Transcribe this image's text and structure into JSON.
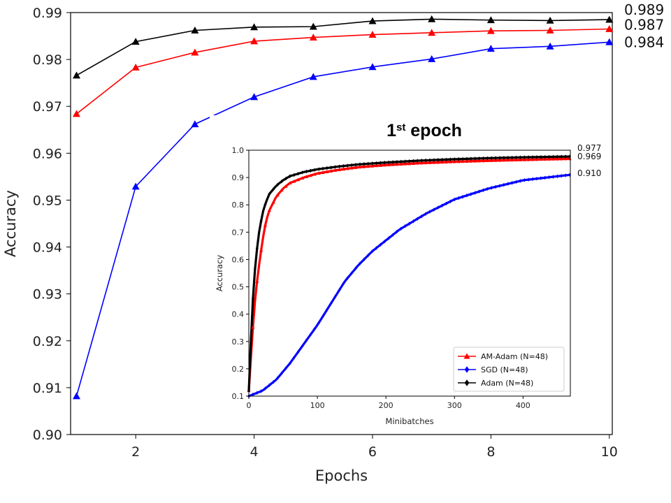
{
  "chart_data": [
    {
      "type": "line",
      "title": "",
      "xlabel": "Epochs",
      "ylabel": "Accuracy",
      "xlim": [
        0.9,
        10.05
      ],
      "ylim": [
        0.9,
        0.99
      ],
      "x_ticks": [
        "2",
        "4",
        "6",
        "8",
        "10"
      ],
      "y_ticks": [
        "0.90",
        "0.91",
        "0.92",
        "0.93",
        "0.94",
        "0.95",
        "0.96",
        "0.97",
        "0.98",
        "0.99"
      ],
      "x": [
        1,
        2,
        3,
        4,
        5,
        6,
        7,
        8,
        9,
        10
      ],
      "series": [
        {
          "name": "Adam",
          "color": "#000000",
          "marker": "triangle",
          "values": [
            0.9766,
            0.9838,
            0.9862,
            0.9869,
            0.987,
            0.9882,
            0.9886,
            0.9884,
            0.9883,
            0.9885
          ],
          "end_label": "0.989"
        },
        {
          "name": "AM-Adam",
          "color": "#ff0000",
          "marker": "triangle",
          "values": [
            0.9684,
            0.9783,
            0.9815,
            0.9839,
            0.9847,
            0.9853,
            0.9857,
            0.9861,
            0.9862,
            0.9865
          ],
          "end_label": "0.987"
        },
        {
          "name": "SGD",
          "color": "#0000ff",
          "marker": "triangle",
          "values": [
            0.9082,
            0.9529,
            0.9662,
            0.972,
            0.9763,
            0.9784,
            0.9801,
            0.9823,
            0.9828,
            0.9837
          ],
          "end_label": "0.984"
        }
      ]
    },
    {
      "type": "line",
      "title": "1st epoch",
      "title_main": "1",
      "title_sup": "st",
      "title_rest": " epoch",
      "xlabel": "Minibatches",
      "ylabel": "Accuracy",
      "xlim": [
        0,
        469
      ],
      "ylim": [
        0.1,
        1.0
      ],
      "x_ticks": [
        "0",
        "100",
        "200",
        "300",
        "400"
      ],
      "y_ticks": [
        "0.1",
        "0.2",
        "0.3",
        "0.4",
        "0.5",
        "0.6",
        "0.7",
        "0.8",
        "0.9",
        "1.0"
      ],
      "legend_position": "lower-right",
      "series": [
        {
          "name": "AM-Adam (N=48)",
          "color": "#ff0000",
          "marker": "triangle",
          "x": [
            0,
            5,
            10,
            15,
            20,
            25,
            30,
            40,
            50,
            60,
            80,
            100,
            130,
            160,
            200,
            250,
            300,
            350,
            400,
            469
          ],
          "values": [
            0.12,
            0.32,
            0.48,
            0.58,
            0.67,
            0.74,
            0.78,
            0.83,
            0.86,
            0.88,
            0.9,
            0.915,
            0.928,
            0.938,
            0.946,
            0.953,
            0.958,
            0.962,
            0.965,
            0.969
          ],
          "end_label": "0.969"
        },
        {
          "name": "SGD (N=48)",
          "color": "#0000ff",
          "marker": "diamond",
          "x": [
            0,
            20,
            40,
            60,
            80,
            100,
            120,
            140,
            160,
            180,
            200,
            220,
            240,
            260,
            300,
            350,
            400,
            469
          ],
          "values": [
            0.1,
            0.12,
            0.16,
            0.22,
            0.29,
            0.36,
            0.44,
            0.52,
            0.58,
            0.63,
            0.67,
            0.71,
            0.74,
            0.77,
            0.82,
            0.86,
            0.89,
            0.91
          ],
          "end_label": "0.910"
        },
        {
          "name": "Adam (N=48)",
          "color": "#000000",
          "marker": "diamond",
          "x": [
            0,
            5,
            10,
            15,
            20,
            25,
            30,
            40,
            50,
            60,
            80,
            100,
            130,
            160,
            200,
            250,
            300,
            350,
            400,
            469
          ],
          "values": [
            0.12,
            0.42,
            0.6,
            0.7,
            0.77,
            0.81,
            0.84,
            0.87,
            0.89,
            0.905,
            0.92,
            0.93,
            0.94,
            0.948,
            0.955,
            0.962,
            0.967,
            0.971,
            0.974,
            0.977
          ],
          "end_label": "0.977"
        }
      ]
    }
  ]
}
